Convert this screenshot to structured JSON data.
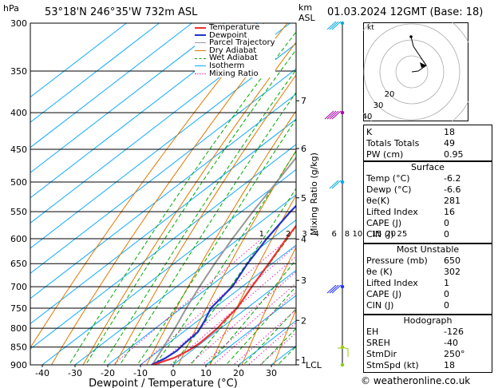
{
  "header": {
    "location": "53°18'N  246°35'W  732m  ASL",
    "datetime": "01.03.2024  12GMT  (Base: 18)",
    "hpa_label": "hPa",
    "km_label": "km",
    "asl_label": "ASL"
  },
  "chart_data": {
    "type": "line",
    "kind": "skew-T log-P sounding",
    "xlabel": "Dewpoint / Temperature (°C)",
    "ylabel": "Mixing Ratio (g/kg)",
    "x_ticks": [
      -40,
      -30,
      -20,
      -10,
      0,
      10,
      20,
      30
    ],
    "p_ticks": [
      300,
      350,
      400,
      450,
      500,
      550,
      600,
      650,
      700,
      750,
      800,
      850,
      900
    ],
    "km_ticks": [
      {
        "km": "1",
        "p": 886
      },
      {
        "km": "2",
        "p": 780
      },
      {
        "km": "3",
        "p": 686
      },
      {
        "km": "4",
        "p": 601
      },
      {
        "km": "5",
        "p": 526
      },
      {
        "km": "6",
        "p": 449
      },
      {
        "km": "7",
        "p": 385
      }
    ],
    "lcl_label": "LCL",
    "lcl_p": 900,
    "mixing_ratio_labels": [
      "1",
      "2",
      "3",
      "4",
      "6",
      "8",
      "10",
      "15",
      "20",
      "25"
    ],
    "mixing_ratios": [
      1,
      2,
      3,
      4,
      6,
      8,
      10,
      15,
      20,
      25
    ],
    "legend": [
      "Temperature",
      "Dewpoint",
      "Parcel Trajectory",
      "Dry Adiabat",
      "Wet Adiabat",
      "Isotherm",
      "Mixing Ratio"
    ],
    "temperature": [
      [
        900,
        -6.2
      ],
      [
        880,
        -2.5
      ],
      [
        860,
        -1.0
      ],
      [
        840,
        -0.5
      ],
      [
        800,
        -1.0
      ],
      [
        780,
        -2.0
      ],
      [
        750,
        -3.0
      ],
      [
        700,
        -7.0
      ],
      [
        650,
        -11.0
      ],
      [
        600,
        -15.5
      ],
      [
        550,
        -20.0
      ],
      [
        500,
        -25.0
      ],
      [
        450,
        -30.5
      ],
      [
        400,
        -37.0
      ],
      [
        350,
        -44.0
      ],
      [
        300,
        -50.0
      ]
    ],
    "dewpoint": [
      [
        900,
        -6.6
      ],
      [
        880,
        -5.0
      ],
      [
        860,
        -4.5
      ],
      [
        840,
        -5.0
      ],
      [
        810,
        -5.5
      ],
      [
        780,
        -8.0
      ],
      [
        750,
        -11.0
      ],
      [
        700,
        -13.0
      ],
      [
        650,
        -17.5
      ],
      [
        600,
        -21.5
      ],
      [
        550,
        -25.0
      ],
      [
        500,
        -28.0
      ],
      [
        450,
        -32.5
      ],
      [
        400,
        -38.5
      ],
      [
        350,
        -45.0
      ],
      [
        300,
        -51.0
      ]
    ],
    "parcel": [
      [
        900,
        -6.4
      ],
      [
        850,
        -10.0
      ],
      [
        800,
        -14.0
      ],
      [
        750,
        -18.5
      ],
      [
        700,
        -23.0
      ],
      [
        650,
        -27.5
      ],
      [
        600,
        -32.0
      ],
      [
        550,
        -36.5
      ],
      [
        500,
        -41.0
      ],
      [
        450,
        -46.0
      ],
      [
        400,
        -51.0
      ],
      [
        350,
        -56.0
      ],
      [
        300,
        -61.0
      ]
    ],
    "x_range": [
      -42,
      37
    ],
    "p_range": [
      300,
      900
    ],
    "colors": {
      "temperature": "#ee3333",
      "dewpoint": "#2233cc",
      "parcel": "#999999",
      "dry_adiabat": "#e07800",
      "wet_adiabat": "#00aa00",
      "isotherm": "#11aaff",
      "mixing_ratio": "#ee22aa"
    }
  },
  "hodograph": {
    "label": "kt",
    "ring_labels": [
      "10",
      "20",
      "30",
      "40"
    ],
    "points": [
      [
        -0.5,
        22
      ],
      [
        1,
        16
      ],
      [
        9,
        4
      ],
      [
        4,
        0.5
      ],
      [
        0,
        0
      ]
    ]
  },
  "tables": {
    "indices": [
      {
        "label": "K",
        "value": "18"
      },
      {
        "label": "Totals Totals",
        "value": "49"
      },
      {
        "label": "PW (cm)",
        "value": "0.95"
      }
    ],
    "surface_title": "Surface",
    "surface": [
      {
        "label": "Temp (°C)",
        "value": "-6.2"
      },
      {
        "label": "Dewp (°C)",
        "value": "-6.6"
      },
      {
        "label": "θe(K)",
        "value": "281"
      },
      {
        "label": "Lifted Index",
        "value": "16"
      },
      {
        "label": "CAPE (J)",
        "value": "0"
      },
      {
        "label": "CIN (J)",
        "value": "0"
      }
    ],
    "unstable_title": "Most Unstable",
    "unstable": [
      {
        "label": "Pressure (mb)",
        "value": "650"
      },
      {
        "label": "θe (K)",
        "value": "302"
      },
      {
        "label": "Lifted Index",
        "value": "1"
      },
      {
        "label": "CAPE (J)",
        "value": "0"
      },
      {
        "label": "CIN (J)",
        "value": "0"
      }
    ],
    "hodo_title": "Hodograph",
    "hodo": [
      {
        "label": "EH",
        "value": "-126"
      },
      {
        "label": "SREH",
        "value": "-40"
      },
      {
        "label": "StmDir",
        "value": "250°"
      },
      {
        "label": "StmSpd (kt)",
        "value": "18"
      }
    ]
  },
  "footer": "© weatheronline.co.uk"
}
